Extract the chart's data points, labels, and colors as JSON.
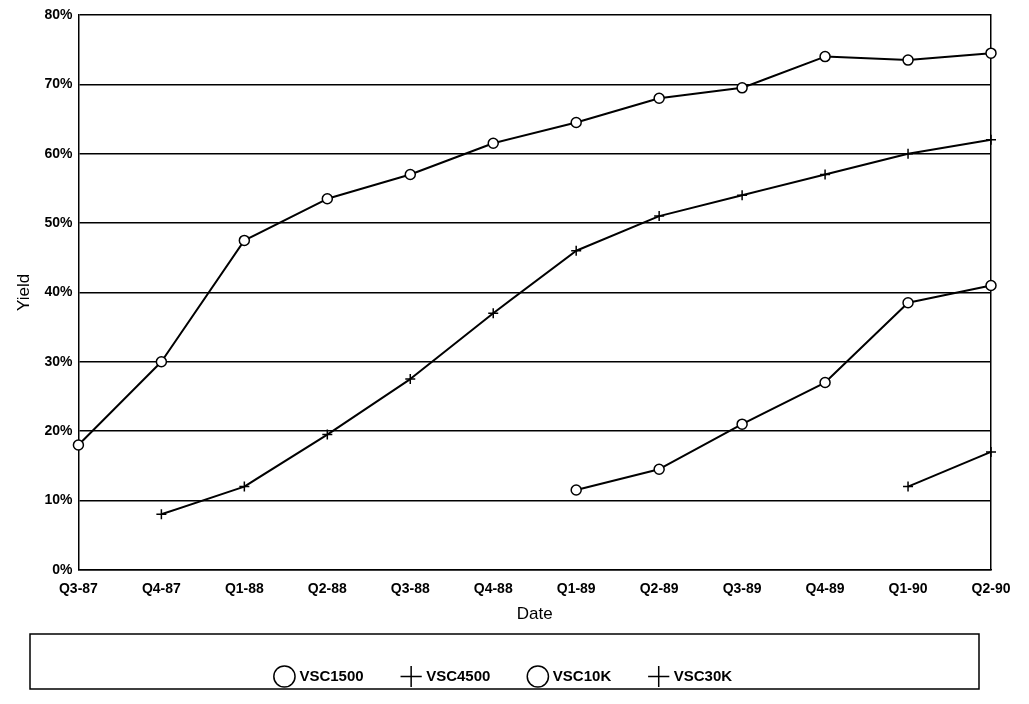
{
  "chart_data": {
    "type": "line",
    "xlabel": "Date",
    "ylabel": "Yield",
    "categories": [
      "Q3-87",
      "Q4-87",
      "Q1-88",
      "Q2-88",
      "Q3-88",
      "Q4-88",
      "Q1-89",
      "Q2-89",
      "Q3-89",
      "Q4-89",
      "Q1-90",
      "Q2-90"
    ],
    "ylim": [
      0,
      0.8
    ],
    "yticks": [
      {
        "value": 0,
        "label": "0%"
      },
      {
        "value": 0.1,
        "label": "10%"
      },
      {
        "value": 0.2,
        "label": "20%"
      },
      {
        "value": 0.3,
        "label": "30%"
      },
      {
        "value": 0.4,
        "label": "40%"
      },
      {
        "value": 0.5,
        "label": "50%"
      },
      {
        "value": 0.6,
        "label": "60%"
      },
      {
        "value": 0.7,
        "label": "70%"
      },
      {
        "value": 0.8,
        "label": "80%"
      }
    ],
    "grid": "y",
    "legend": "bottom",
    "line_style": "solid",
    "series": [
      {
        "name": "VSC1500",
        "color": "#000000",
        "marker": "circle",
        "values": [
          0.18,
          0.3,
          0.475,
          0.535,
          0.57,
          0.615,
          0.645,
          0.68,
          0.695,
          0.74,
          0.735,
          0.745
        ]
      },
      {
        "name": "VSC4500",
        "color": "#000000",
        "marker": "cross",
        "values": [
          null,
          0.08,
          0.12,
          0.195,
          0.275,
          0.37,
          0.46,
          0.51,
          0.54,
          0.57,
          0.6,
          0.62
        ]
      },
      {
        "name": "VSC10K",
        "color": "#000000",
        "marker": "circle",
        "values": [
          null,
          null,
          null,
          null,
          null,
          null,
          0.115,
          0.145,
          0.21,
          0.27,
          0.385,
          0.41
        ]
      },
      {
        "name": "VSC30K",
        "color": "#000000",
        "marker": "cross",
        "values": [
          null,
          null,
          null,
          null,
          null,
          null,
          null,
          null,
          null,
          null,
          0.12,
          0.17
        ]
      }
    ]
  }
}
